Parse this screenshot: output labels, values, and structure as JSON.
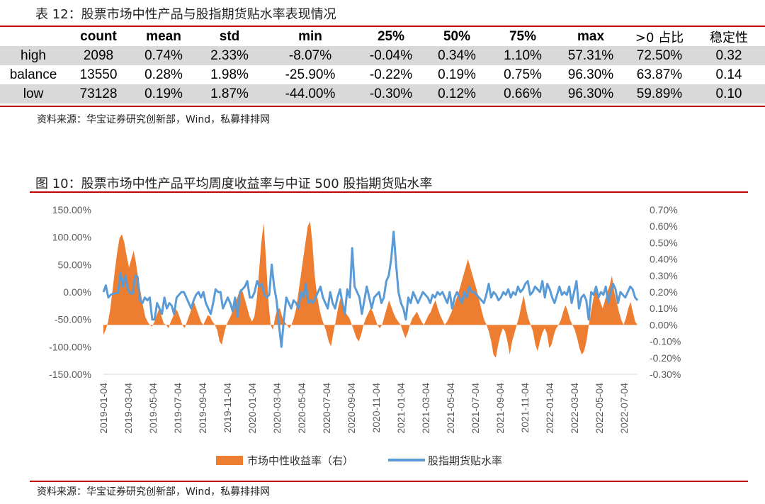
{
  "table": {
    "caption": "表 12：股票市场中性产品与股指期货贴水率表现情况",
    "headers": [
      "",
      "count",
      "mean",
      "std",
      "min",
      "25%",
      "50%",
      "75%",
      "max",
      ">0 占比",
      "稳定性"
    ],
    "rows": [
      [
        "high",
        "2098",
        "0.74%",
        "2.33%",
        "-8.07%",
        "-0.04%",
        "0.34%",
        "1.10%",
        "57.31%",
        "72.50%",
        "0.32"
      ],
      [
        "balance",
        "13550",
        "0.28%",
        "1.98%",
        "-25.90%",
        "-0.22%",
        "0.19%",
        "0.75%",
        "96.30%",
        "63.87%",
        "0.14"
      ],
      [
        "low",
        "73128",
        "0.19%",
        "1.87%",
        "-44.00%",
        "-0.30%",
        "0.12%",
        "0.66%",
        "96.30%",
        "59.89%",
        "0.10"
      ]
    ],
    "source": "资料来源：华宝证券研究创新部，Wind，私募排排网"
  },
  "chart": {
    "caption": "图 10：股票市场中性产品平均周度收益率与中证 500 股指期货贴水率",
    "source": "资料来源：华宝证券研究创新部，Wind，私募排排网"
  },
  "chart_data": {
    "type": "area",
    "left_axis": {
      "ticks": [
        "150.00%",
        "100.00%",
        "50.00%",
        "0.00%",
        "-50.00%",
        "-100.00%",
        "-150.00%"
      ],
      "ylim": [
        -150,
        150
      ]
    },
    "right_axis": {
      "ticks": [
        "0.70%",
        "0.60%",
        "0.50%",
        "0.40%",
        "0.30%",
        "0.20%",
        "0.10%",
        "0.00%",
        "-0.10%",
        "-0.20%",
        "-0.30%"
      ],
      "ylim": [
        -0.3,
        0.7
      ]
    },
    "x_ticks": [
      "2019-01-04",
      "2019-03-04",
      "2019-05-04",
      "2019-07-04",
      "2019-09-04",
      "2019-11-04",
      "2020-01-04",
      "2020-03-04",
      "2020-05-04",
      "2020-07-04",
      "2020-09-04",
      "2020-11-04",
      "2021-01-04",
      "2021-03-04",
      "2021-05-04",
      "2021-07-04",
      "2021-09-04",
      "2021-11-04",
      "2022-01-04",
      "2022-03-04",
      "2022-05-04",
      "2022-07-04"
    ],
    "legend_position": "bottom",
    "series": [
      {
        "name": "市场中性收益率（右）",
        "type": "area",
        "axis": "right",
        "color": "#ed7d31",
        "values": [
          -0.06,
          -0.03,
          0.02,
          0.1,
          0.22,
          0.34,
          0.45,
          0.53,
          0.55,
          0.5,
          0.42,
          0.35,
          0.4,
          0.45,
          0.38,
          0.28,
          0.2,
          0.12,
          0.05,
          0.02,
          0.0,
          -0.01,
          0.02,
          0.06,
          0.1,
          0.05,
          0.01,
          0.0,
          -0.02,
          0.02,
          0.05,
          0.1,
          0.08,
          0.04,
          0.0,
          -0.02,
          0.02,
          0.06,
          0.1,
          0.14,
          0.1,
          0.06,
          0.02,
          0.0,
          0.03,
          0.06,
          0.05,
          0.02,
          0.0,
          -0.03,
          -0.1,
          -0.12,
          -0.05,
          0.0,
          0.03,
          0.06,
          0.1,
          0.14,
          0.18,
          0.22,
          0.2,
          0.15,
          0.1,
          0.05,
          0.02,
          0.05,
          0.15,
          0.32,
          0.5,
          0.62,
          0.4,
          0.15,
          0.0,
          -0.03,
          0.05,
          0.1,
          0.1,
          0.05,
          0.02,
          0.0,
          -0.02,
          0.0,
          0.04,
          0.1,
          0.2,
          0.3,
          0.4,
          0.5,
          0.6,
          0.63,
          0.5,
          0.3,
          0.18,
          0.1,
          0.04,
          0.0,
          -0.04,
          -0.1,
          -0.13,
          -0.05,
          0.02,
          0.1,
          0.16,
          0.12,
          0.08,
          0.06,
          0.04,
          0.0,
          -0.04,
          -0.08,
          -0.1,
          -0.06,
          0.0,
          0.04,
          0.07,
          0.1,
          0.08,
          0.04,
          0.0,
          -0.02,
          0.0,
          0.05,
          0.1,
          0.15,
          0.11,
          0.07,
          0.04,
          0.02,
          0.0,
          -0.04,
          -0.08,
          -0.05,
          0.0,
          0.04,
          0.06,
          0.08,
          0.05,
          0.02,
          0.0,
          0.03,
          0.06,
          0.08,
          0.12,
          0.15,
          0.1,
          0.06,
          0.03,
          0.0,
          0.02,
          0.05,
          0.08,
          0.12,
          0.16,
          0.2,
          0.25,
          0.3,
          0.35,
          0.4,
          0.35,
          0.3,
          0.25,
          0.2,
          0.14,
          0.08,
          0.03,
          0.0,
          -0.04,
          -0.1,
          -0.18,
          -0.2,
          -0.12,
          -0.06,
          -0.02,
          -0.04,
          -0.1,
          -0.18,
          -0.1,
          -0.05,
          0.0,
          0.05,
          0.12,
          0.18,
          0.1,
          0.04,
          0.0,
          -0.04,
          -0.12,
          -0.16,
          -0.1,
          -0.05,
          -0.02,
          -0.05,
          -0.14,
          -0.12,
          -0.06,
          -0.02,
          0.0,
          0.03,
          0.08,
          0.12,
          0.08,
          0.03,
          0.0,
          -0.03,
          -0.08,
          -0.14,
          -0.18,
          -0.16,
          -0.1,
          0.0,
          0.08,
          0.16,
          0.22,
          0.18,
          0.14,
          0.1,
          0.15,
          0.2,
          0.24,
          0.3,
          0.2,
          0.14,
          0.08,
          0.03,
          0.0,
          0.04,
          0.1,
          0.14,
          0.08,
          0.02,
          0.0
        ]
      },
      {
        "name": "股指期货贴水率",
        "type": "line",
        "axis": "left",
        "color": "#5b9bd5",
        "values": [
          0,
          12,
          -10,
          -5,
          -3,
          -2,
          -2,
          35,
          10,
          30,
          5,
          -2,
          -3,
          30,
          28,
          -15,
          -20,
          -10,
          -15,
          -10,
          -50,
          -50,
          -20,
          -30,
          -40,
          -10,
          -30,
          -20,
          -25,
          -40,
          -10,
          -5,
          0,
          0,
          -10,
          -20,
          -30,
          -15,
          -5,
          0,
          -10,
          0,
          -20,
          -30,
          -40,
          -20,
          5,
          0,
          0,
          -30,
          -20,
          -10,
          -20,
          -35,
          -10,
          -45,
          0,
          5,
          10,
          20,
          -10,
          -10,
          0,
          20,
          10,
          15,
          -5,
          -10,
          -5,
          50,
          10,
          -15,
          -60,
          -100,
          -50,
          -10,
          -20,
          -30,
          -15,
          -20,
          -30,
          0,
          -10,
          15,
          -20,
          -15,
          -20,
          -10,
          0,
          10,
          -10,
          -20,
          -30,
          0,
          -20,
          -30,
          -10,
          5,
          -20,
          -40,
          5,
          -10,
          80,
          10,
          0,
          -10,
          -40,
          -15,
          10,
          -10,
          -30,
          -10,
          -5,
          0,
          -20,
          -10,
          20,
          30,
          60,
          110,
          50,
          0,
          -20,
          -30,
          -50,
          -10,
          -20,
          0,
          -10,
          -20,
          -10,
          0,
          -5,
          -10,
          -20,
          -5,
          -10,
          0,
          -5,
          0,
          -10,
          -20,
          0,
          -30,
          -10,
          0,
          -10,
          -20,
          0,
          -10,
          10,
          0,
          0,
          -5,
          -10,
          -15,
          -20,
          -5,
          15,
          -10,
          0,
          -5,
          -15,
          -10,
          0,
          -5,
          5,
          -10,
          0,
          -5,
          10,
          0,
          5,
          15,
          20,
          -5,
          0,
          10,
          5,
          0,
          20,
          -10,
          15,
          5,
          -10,
          -20,
          -5,
          10,
          -5,
          0,
          -5,
          10,
          -20,
          0,
          20,
          -30,
          -10,
          -5,
          -15,
          -50,
          0,
          -5,
          10,
          -10,
          0,
          -5,
          10,
          -20,
          0,
          15,
          5,
          -20,
          0,
          -5,
          -10,
          0,
          10,
          5,
          -10,
          -15
        ]
      }
    ]
  }
}
